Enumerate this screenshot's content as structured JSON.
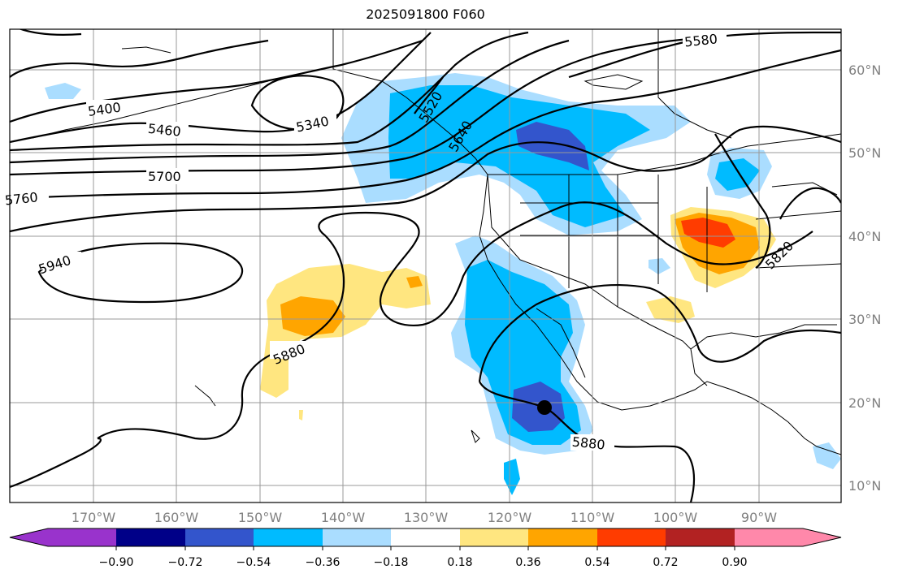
{
  "title": "2025091800 F060",
  "colors": {
    "neg": [
      "#9933cc",
      "#000088",
      "#3355cc",
      "#00bbff",
      "#aaddff"
    ],
    "mid": "#ffffff",
    "pos": [
      "#ffe680",
      "#ffa500",
      "#ff3c00",
      "#b22222",
      "#ff88aa"
    ],
    "grid": "#999999",
    "contour": "#000000"
  },
  "lon_labels": [
    "170°W",
    "160°W",
    "150°W",
    "140°W",
    "130°W",
    "120°W",
    "110°W",
    "100°W",
    "90°W"
  ],
  "lat_labels": [
    "60°N",
    "50°N",
    "40°N",
    "30°N",
    "20°N",
    "10°N"
  ],
  "contour_labels": [
    "5400",
    "5460",
    "5340",
    "5700",
    "5760",
    "5940",
    "5880",
    "5520",
    "5640",
    "5580",
    "5820",
    "5880"
  ],
  "colorbar_ticks": [
    "−0.90",
    "−0.72",
    "−0.54",
    "−0.36",
    "−0.18",
    "0.18",
    "0.36",
    "0.54",
    "0.72",
    "0.90"
  ],
  "marker": "storm center"
}
